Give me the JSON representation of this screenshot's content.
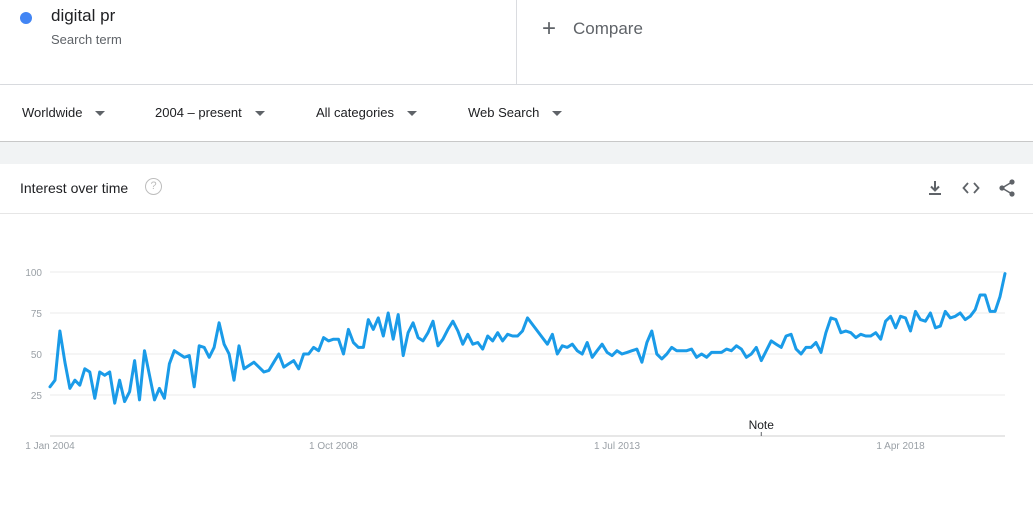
{
  "search_term": {
    "name": "digital pr",
    "subtitle": "Search term",
    "color": "#4285f4"
  },
  "compare": {
    "label": "Compare"
  },
  "filters": {
    "region": "Worldwide",
    "time": "2004 – present",
    "category": "All categories",
    "property": "Web Search"
  },
  "card": {
    "title": "Interest over time",
    "help_symbol": "?",
    "actions": [
      "download-icon",
      "embed-icon",
      "share-icon"
    ]
  },
  "chart_data": {
    "type": "line",
    "title": "",
    "xlabel": "",
    "ylabel": "",
    "ylim": [
      0,
      100
    ],
    "y_ticks": [
      25,
      50,
      75,
      100
    ],
    "x_tick_labels": [
      {
        "label": "1 Jan 2004",
        "index": 0
      },
      {
        "label": "1 Oct 2008",
        "index": 57
      },
      {
        "label": "1 Jul 2013",
        "index": 114
      },
      {
        "label": "1 Apr 2018",
        "index": 171
      }
    ],
    "annotation": {
      "label": "Note",
      "index": 143
    },
    "line_color": "#1a9be8",
    "grid": true,
    "series": [
      {
        "values": [
          30,
          34,
          64,
          45,
          29,
          34,
          31,
          41,
          39,
          23,
          39,
          37,
          39,
          20,
          34,
          21,
          27,
          46,
          22,
          52,
          37,
          22,
          29,
          23,
          44,
          52,
          50,
          48,
          49,
          30,
          55,
          54,
          48,
          54,
          69,
          56,
          50,
          34,
          55,
          41,
          43,
          45,
          42,
          39,
          40,
          45,
          50,
          42,
          44,
          46,
          41,
          50,
          50,
          54,
          52,
          60,
          58,
          59,
          59,
          50,
          65,
          57,
          54,
          54,
          71,
          65,
          72,
          61,
          75,
          59,
          74,
          49,
          63,
          69,
          60,
          58,
          63,
          70,
          55,
          59,
          65,
          70,
          64,
          56,
          62,
          56,
          57,
          53,
          61,
          58,
          63,
          58,
          62,
          61,
          61,
          64,
          72,
          68,
          64,
          60,
          56,
          62,
          50,
          55,
          54,
          56,
          52,
          50,
          57,
          48,
          52,
          56,
          51,
          49,
          52,
          50,
          51,
          52,
          53,
          45,
          57,
          64,
          50,
          47,
          50,
          54,
          52,
          52,
          52,
          53,
          48,
          50,
          48,
          51,
          51,
          51,
          53,
          52,
          55,
          53,
          48,
          50,
          54,
          46,
          52,
          58,
          56,
          54,
          61,
          62,
          53,
          50,
          54,
          54,
          57,
          51,
          63,
          72,
          71,
          63,
          64,
          63,
          60,
          62,
          61,
          61,
          63,
          59,
          70,
          73,
          66,
          73,
          72,
          64,
          76,
          71,
          70,
          75,
          66,
          67,
          76,
          72,
          73,
          75,
          71,
          73,
          77,
          86,
          86,
          76,
          76,
          85,
          99
        ]
      }
    ]
  }
}
